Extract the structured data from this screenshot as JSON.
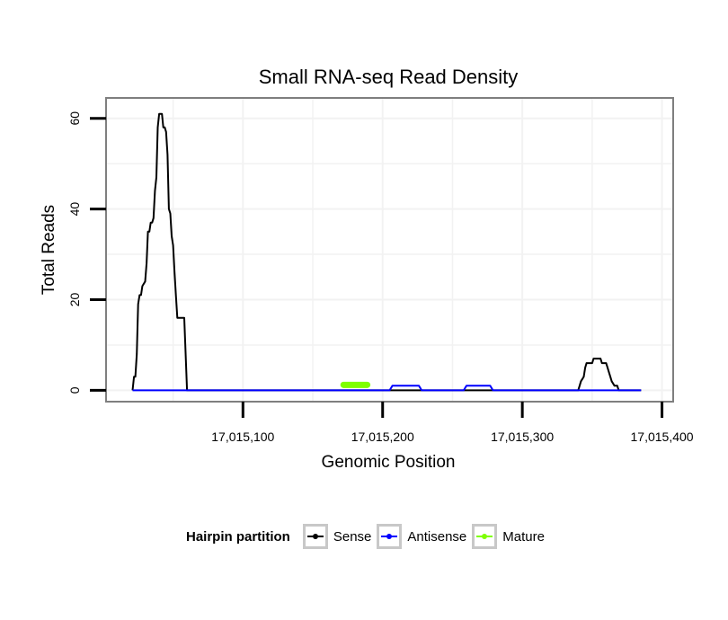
{
  "chart_data": {
    "type": "line",
    "title": "Small RNA-seq Read Density",
    "xlabel": "Genomic Position",
    "ylabel": "Total Reads",
    "xlim": [
      17015002,
      17015408
    ],
    "ylim": [
      -2.5,
      64.5
    ],
    "x_ticks": [
      17015100,
      17015200,
      17015300,
      17015400
    ],
    "x_tick_labels": [
      "17,015,100",
      "17,015,200",
      "17,015,300",
      "17,015,400"
    ],
    "y_ticks": [
      0,
      20,
      40,
      60
    ],
    "y_tick_labels": [
      "0",
      "20",
      "40",
      "60"
    ],
    "grid": true,
    "legend_position": "bottom",
    "colors": {
      "sense": "#000000",
      "antisense": "#0000ff",
      "mature": "#7fff00"
    },
    "series": [
      {
        "name": "Sense",
        "color": "#000000",
        "x": [
          17015021,
          17015022,
          17015023,
          17015024,
          17015025,
          17015026,
          17015027,
          17015028,
          17015030,
          17015031,
          17015032,
          17015033,
          17015034,
          17015035,
          17015036,
          17015037,
          17015038,
          17015039,
          17015040,
          17015041,
          17015042,
          17015043,
          17015044,
          17015045,
          17015046,
          17015047,
          17015048,
          17015049,
          17015050,
          17015051,
          17015052,
          17015053,
          17015054,
          17015055,
          17015056,
          17015057,
          17015058,
          17015060,
          17015061,
          17015062,
          17015063,
          17015064,
          17015065,
          17015066,
          17015340,
          17015341,
          17015342,
          17015344,
          17015345,
          17015346,
          17015347,
          17015350,
          17015351,
          17015352,
          17015353,
          17015356,
          17015357,
          17015358,
          17015360,
          17015361,
          17015362,
          17015363,
          17015364,
          17015366,
          17015367,
          17015368,
          17015369,
          17015370,
          17015371,
          17015372,
          17015373,
          17015374,
          17015375,
          17015376,
          17015377,
          17015378,
          17015379,
          17015380,
          17015381,
          17015383,
          17015385
        ],
        "y": [
          0,
          3,
          3,
          8,
          19,
          21,
          21,
          23,
          24,
          28,
          35,
          35,
          37,
          37,
          38,
          44,
          47,
          58,
          61,
          61,
          61,
          58,
          58,
          57,
          52,
          40,
          39,
          34,
          32,
          26,
          21,
          16,
          16,
          16,
          16,
          16,
          16,
          0,
          0,
          0,
          0,
          0,
          0,
          0,
          0,
          1,
          2,
          3,
          5,
          6,
          6,
          6,
          7,
          7,
          7,
          7,
          6,
          6,
          6,
          5,
          4,
          3,
          2,
          1,
          1,
          1,
          0,
          0,
          0,
          0,
          0,
          0,
          0,
          0,
          0,
          0,
          0,
          0,
          0,
          0,
          0
        ],
        "domain_end": 17015385
      },
      {
        "name": "Antisense",
        "color": "#0000ff",
        "segments": [
          {
            "x": [
              17015021,
              17015205,
              17015207,
              17015226,
              17015228,
              17015258,
              17015260,
              17015277,
              17015279,
              17015385
            ],
            "y": [
              0,
              0,
              1,
              1,
              0,
              0,
              1,
              1,
              0,
              0
            ]
          }
        ]
      },
      {
        "name": "Mature",
        "color": "#7fff00",
        "x": [
          17015172,
          17015189
        ],
        "y": [
          1.2,
          1.2
        ]
      }
    ]
  },
  "legend": {
    "title": "Hairpin partition",
    "items": [
      {
        "label": "Sense",
        "color": "#000000"
      },
      {
        "label": "Antisense",
        "color": "#0000ff"
      },
      {
        "label": "Mature",
        "color": "#7fff00"
      }
    ]
  }
}
